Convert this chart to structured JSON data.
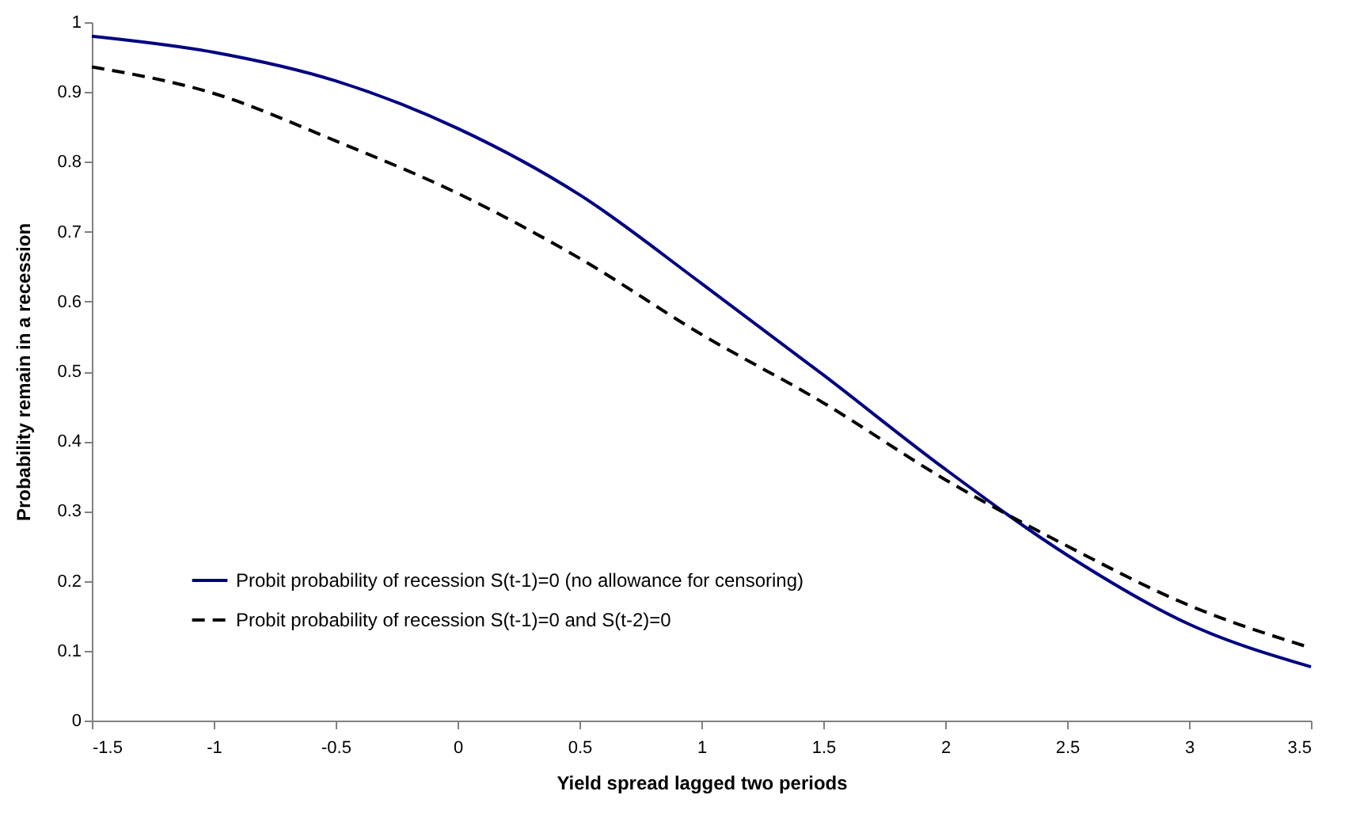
{
  "chart_data": {
    "type": "line",
    "xlabel": "Yield spread lagged two periods",
    "ylabel": "Probability remain in a recession",
    "x": [
      -1.5,
      -1,
      -0.5,
      0,
      0.5,
      1,
      1.5,
      2,
      2.5,
      3,
      3.5
    ],
    "series": [
      {
        "name": "Probit probability of recession S(t-1)=0 (no allowance for censoring)",
        "color": "#000080",
        "line_style": "solid",
        "values": [
          0.98,
          0.957,
          0.916,
          0.848,
          0.753,
          0.626,
          0.495,
          0.36,
          0.237,
          0.138,
          0.077
        ]
      },
      {
        "name": "Probit probability of recession S(t-1)=0 and S(t-2)=0",
        "color": "#000000",
        "line_style": "dashed",
        "values": [
          0.936,
          0.898,
          0.83,
          0.755,
          0.662,
          0.553,
          0.455,
          0.345,
          0.25,
          0.165,
          0.104
        ]
      }
    ],
    "xlim": [
      -1.5,
      3.5
    ],
    "xticks": [
      -1.5,
      -1,
      -0.5,
      0,
      0.5,
      1,
      1.5,
      2,
      2.5,
      3,
      3.5
    ],
    "ylim": [
      0,
      1
    ],
    "yticks": [
      0,
      0.1,
      0.2,
      0.3,
      0.4,
      0.5,
      0.6,
      0.7,
      0.8,
      0.9,
      1
    ],
    "grid": false,
    "legend": "bottom left",
    "marker": "none"
  }
}
